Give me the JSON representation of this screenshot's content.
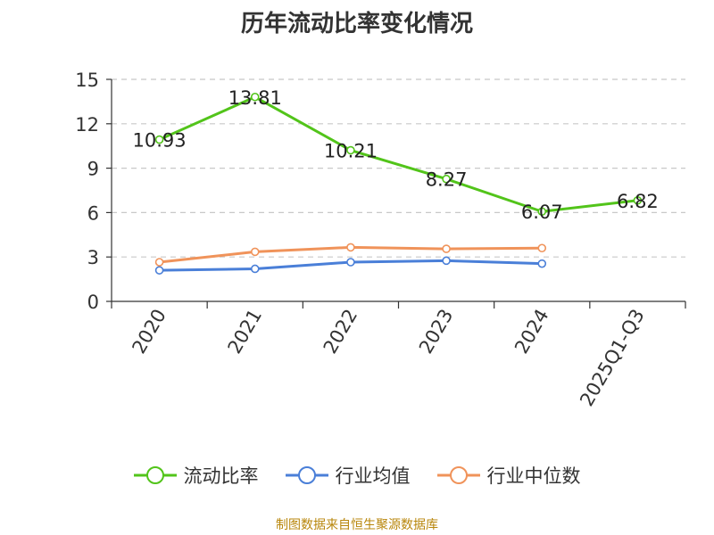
{
  "chart_data": {
    "type": "line",
    "title": "历年流动比率变化情况",
    "categories": [
      "2020",
      "2021",
      "2022",
      "2023",
      "2024",
      "2025Q1-Q3"
    ],
    "ylim": [
      0,
      15
    ],
    "yticks": [
      0,
      3,
      6,
      9,
      12,
      15
    ],
    "grid": true,
    "legend_position": "bottom",
    "series": [
      {
        "name": "流动比率",
        "color": "#52c41a",
        "values": [
          10.93,
          13.81,
          10.21,
          8.27,
          6.07,
          6.82
        ],
        "data_labels": [
          "10.93",
          "13.81",
          "10.21",
          "8.27",
          "6.07",
          "6.82"
        ]
      },
      {
        "name": "行业均值",
        "color": "#4a7fd8",
        "values": [
          2.1,
          2.2,
          2.65,
          2.75,
          2.55,
          null
        ]
      },
      {
        "name": "行业中位数",
        "color": "#f0935a",
        "values": [
          2.65,
          3.35,
          3.65,
          3.55,
          3.6,
          null
        ]
      }
    ]
  },
  "source": "制图数据来自恒生聚源数据库"
}
